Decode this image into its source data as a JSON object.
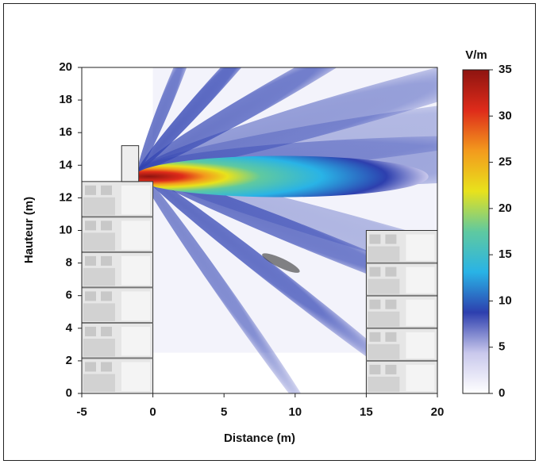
{
  "chart_data": {
    "type": "heatmap",
    "xlabel": "Distance (m)",
    "ylabel": "Hauteur (m)",
    "xlim": [
      -5,
      20
    ],
    "xticks": [
      -5,
      0,
      5,
      10,
      15,
      20
    ],
    "ylim": [
      0,
      20
    ],
    "yticks": [
      0,
      2,
      4,
      6,
      8,
      10,
      12,
      14,
      16,
      18,
      20
    ],
    "colorbar": {
      "label": "V/m",
      "lim": [
        0,
        35
      ],
      "ticks": [
        0,
        5,
        10,
        15,
        20,
        25,
        30,
        35
      ],
      "colors": [
        "#ffffff",
        "#c9c8ec",
        "#2d3fae",
        "#29b3e6",
        "#5fc9a0",
        "#e8e21c",
        "#f39a1d",
        "#de2b1a",
        "#8e1410"
      ]
    }
  }
}
